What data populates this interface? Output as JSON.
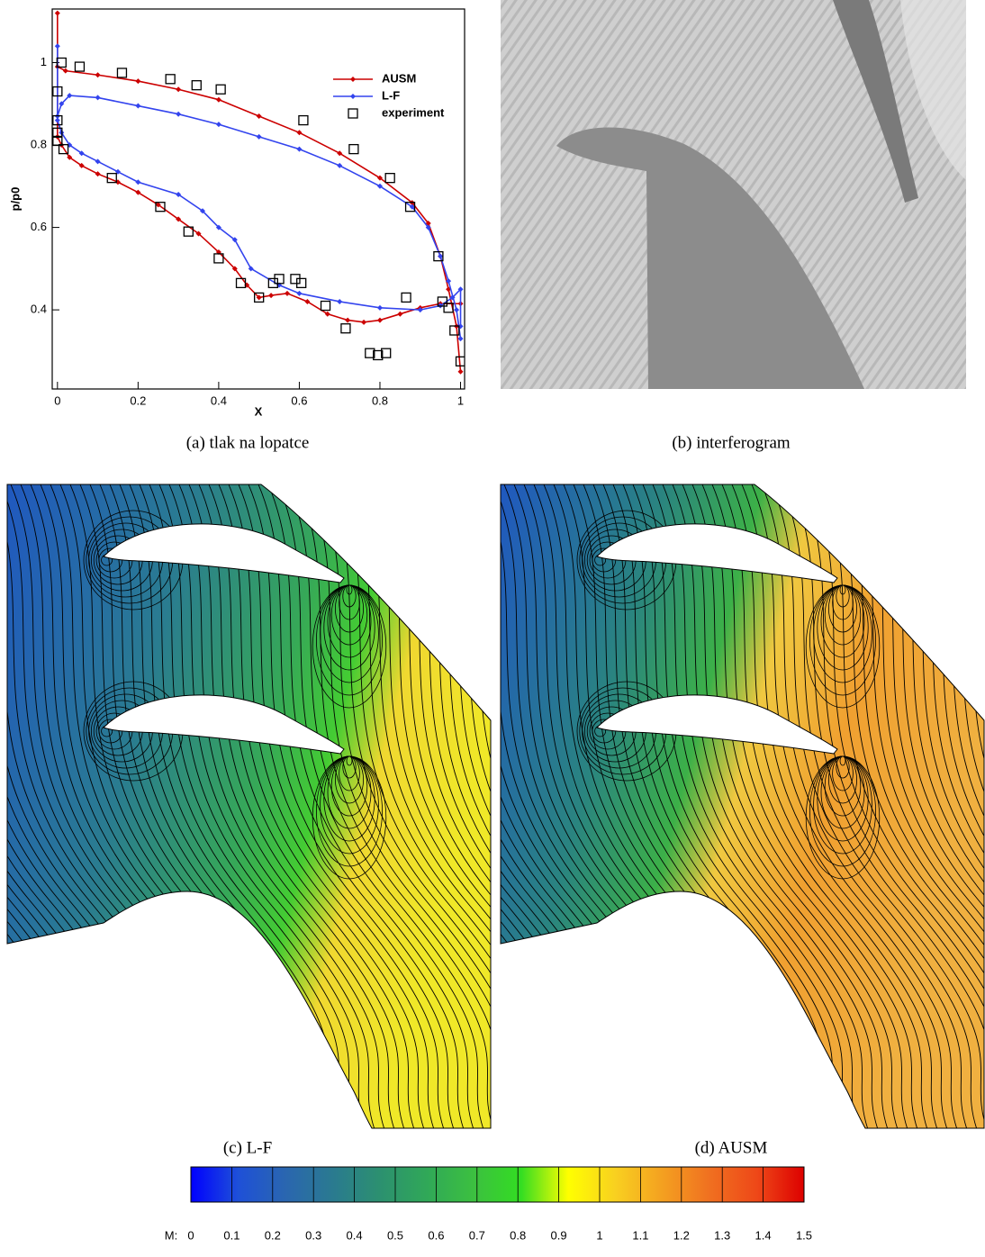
{
  "chart_data": [
    {
      "type": "line",
      "caption": "(a) tlak na lopatce",
      "x_label": "X",
      "y_label": "p/p0",
      "xlim": [
        -0.013,
        1.01
      ],
      "ylim": [
        0.208,
        1.13
      ],
      "xticks": [
        0,
        0.2,
        0.4,
        0.6,
        0.8,
        1
      ],
      "yticks": [
        0.4,
        0.6,
        0.8,
        1
      ],
      "legend": "upper right",
      "series": [
        {
          "name": "AUSM",
          "color": "#cc0000",
          "marker": "diamond",
          "line": true,
          "x": [
            1.0,
            0.99,
            0.97,
            0.95,
            0.92,
            0.88,
            0.8,
            0.7,
            0.6,
            0.5,
            0.4,
            0.3,
            0.2,
            0.1,
            0.02,
            0.0,
            0.0,
            0.0,
            0.01,
            0.03,
            0.06,
            0.1,
            0.15,
            0.2,
            0.25,
            0.3,
            0.35,
            0.4,
            0.44,
            0.47,
            0.5,
            0.53,
            0.57,
            0.62,
            0.67,
            0.72,
            0.76,
            0.8,
            0.85,
            0.9,
            0.95,
            1.0
          ],
          "values": [
            0.25,
            0.36,
            0.45,
            0.53,
            0.61,
            0.66,
            0.72,
            0.78,
            0.83,
            0.87,
            0.91,
            0.935,
            0.955,
            0.97,
            0.98,
            0.99,
            1.12,
            0.82,
            0.8,
            0.77,
            0.75,
            0.73,
            0.71,
            0.685,
            0.655,
            0.62,
            0.585,
            0.54,
            0.5,
            0.46,
            0.43,
            0.435,
            0.44,
            0.42,
            0.39,
            0.375,
            0.37,
            0.375,
            0.39,
            0.405,
            0.415,
            0.415
          ]
        },
        {
          "name": "L-F",
          "color": "#3344ee",
          "marker": "diamond",
          "line": true,
          "x": [
            1.0,
            0.99,
            0.97,
            0.95,
            0.92,
            0.88,
            0.8,
            0.7,
            0.6,
            0.5,
            0.4,
            0.3,
            0.2,
            0.1,
            0.03,
            0.01,
            0.0,
            0.0,
            0.0,
            0.01,
            0.03,
            0.06,
            0.1,
            0.15,
            0.2,
            0.3,
            0.36,
            0.4,
            0.44,
            0.48,
            0.55,
            0.6,
            0.7,
            0.8,
            0.9,
            0.95,
            0.98,
            1.0,
            1.0
          ],
          "values": [
            0.33,
            0.4,
            0.47,
            0.53,
            0.6,
            0.65,
            0.7,
            0.75,
            0.79,
            0.82,
            0.85,
            0.875,
            0.895,
            0.915,
            0.92,
            0.9,
            0.87,
            1.04,
            0.86,
            0.83,
            0.8,
            0.78,
            0.76,
            0.735,
            0.71,
            0.68,
            0.64,
            0.6,
            0.57,
            0.5,
            0.46,
            0.44,
            0.42,
            0.405,
            0.4,
            0.41,
            0.43,
            0.45,
            0.36
          ]
        },
        {
          "name": "experiment",
          "color": "#000000",
          "marker": "square",
          "line": false,
          "x": [
            0.01,
            0.055,
            0.16,
            0.28,
            0.345,
            0.405,
            0.61,
            0.735,
            0.825,
            0.875,
            0.945,
            0.955,
            0.97,
            0.985,
            1.0,
            0.0,
            0.0,
            0.0,
            0.0,
            0.015,
            0.135,
            0.255,
            0.325,
            0.4,
            0.455,
            0.5,
            0.535,
            0.55,
            0.59,
            0.605,
            0.665,
            0.715,
            0.775,
            0.795,
            0.815,
            0.865
          ],
          "values": [
            1.0,
            0.99,
            0.975,
            0.96,
            0.945,
            0.935,
            0.86,
            0.79,
            0.72,
            0.65,
            0.53,
            0.42,
            0.405,
            0.35,
            0.275,
            0.93,
            0.86,
            0.83,
            0.81,
            0.79,
            0.72,
            0.65,
            0.59,
            0.525,
            0.465,
            0.43,
            0.465,
            0.475,
            0.475,
            0.465,
            0.41,
            0.355,
            0.295,
            0.29,
            0.295,
            0.43
          ]
        }
      ]
    },
    {
      "type": "colorbar",
      "label": "M:",
      "xlim": [
        0,
        1.5
      ],
      "xticks": [
        0,
        0.1,
        0.2,
        0.3,
        0.4,
        0.5,
        0.6,
        0.7,
        0.8,
        0.9,
        1,
        1.1,
        1.2,
        1.3,
        1.4,
        1.5
      ],
      "colors": [
        "#0000ff",
        "#1e50d8",
        "#2a66b0",
        "#2a7a90",
        "#2c9070",
        "#30a858",
        "#3cc040",
        "#33dd22",
        "#ffff00",
        "#f8d020",
        "#f4a020",
        "#f07020",
        "#ee4818",
        "#dd0000"
      ]
    }
  ],
  "figures": [
    {
      "caption": "(b) interferogram"
    },
    {
      "caption": "(c) L-F"
    },
    {
      "caption": "(d) AUSM"
    }
  ]
}
